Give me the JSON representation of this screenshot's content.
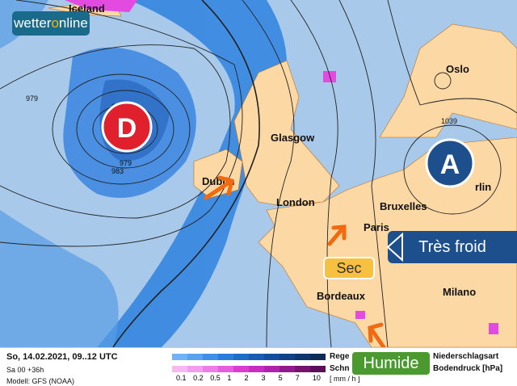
{
  "logo": {
    "text_a": "wetter",
    "text_o": "o",
    "text_b": "nline"
  },
  "map": {
    "cities": [
      "Iceland",
      "Oslo",
      "Glasgow",
      "Dublin",
      "London",
      "Bruxelles",
      "Paris",
      "rlin",
      "Bordeaux",
      "Milano"
    ],
    "isobar_labels": [
      "979",
      "97",
      "979",
      "983",
      "1039"
    ],
    "low_label": "D",
    "high_label": "A",
    "callouts": {
      "cold": "Très froid",
      "dry": "Sec",
      "humid": "Humide"
    },
    "colors": {
      "sea": "#a8c9ea",
      "land": "#fcd8a4",
      "rain": "#2a78d8",
      "snow": "#e040e0",
      "low": "#e0202c",
      "high": "#1d4f8c",
      "cold": "#1d4f8c",
      "dry": "#f8c040",
      "humid": "#4a9a30",
      "arrow": "#f26a10"
    }
  },
  "legend": {
    "date": "So, 14.02.2021, 09..12 UTC",
    "run": "Sa 00 +36h",
    "model": "Modell: GFS (NOAA)",
    "rain_label": "Rege",
    "snow_label": "Schn",
    "type_label": "Niederschlagsart",
    "pressure_label": "Bodendruck [hPa]",
    "unit": "[ mm / h ]",
    "ticks": [
      "0.1",
      "0.2",
      "0.5",
      "1",
      "2",
      "3",
      "5",
      "7",
      "10"
    ],
    "rain_colors": [
      "#6fb3f5",
      "#5aa2ee",
      "#3f8fe6",
      "#2a7ddc",
      "#1f6cc8",
      "#195cb2",
      "#154e9c",
      "#114285",
      "#0e376e",
      "#0b2d58"
    ],
    "snow_colors": [
      "#f8b8f2",
      "#f49cee",
      "#ef7de8",
      "#e85ce0",
      "#dd3cd4",
      "#c82cc0",
      "#b022aa",
      "#921a8e",
      "#761470",
      "#5c0e58"
    ]
  }
}
